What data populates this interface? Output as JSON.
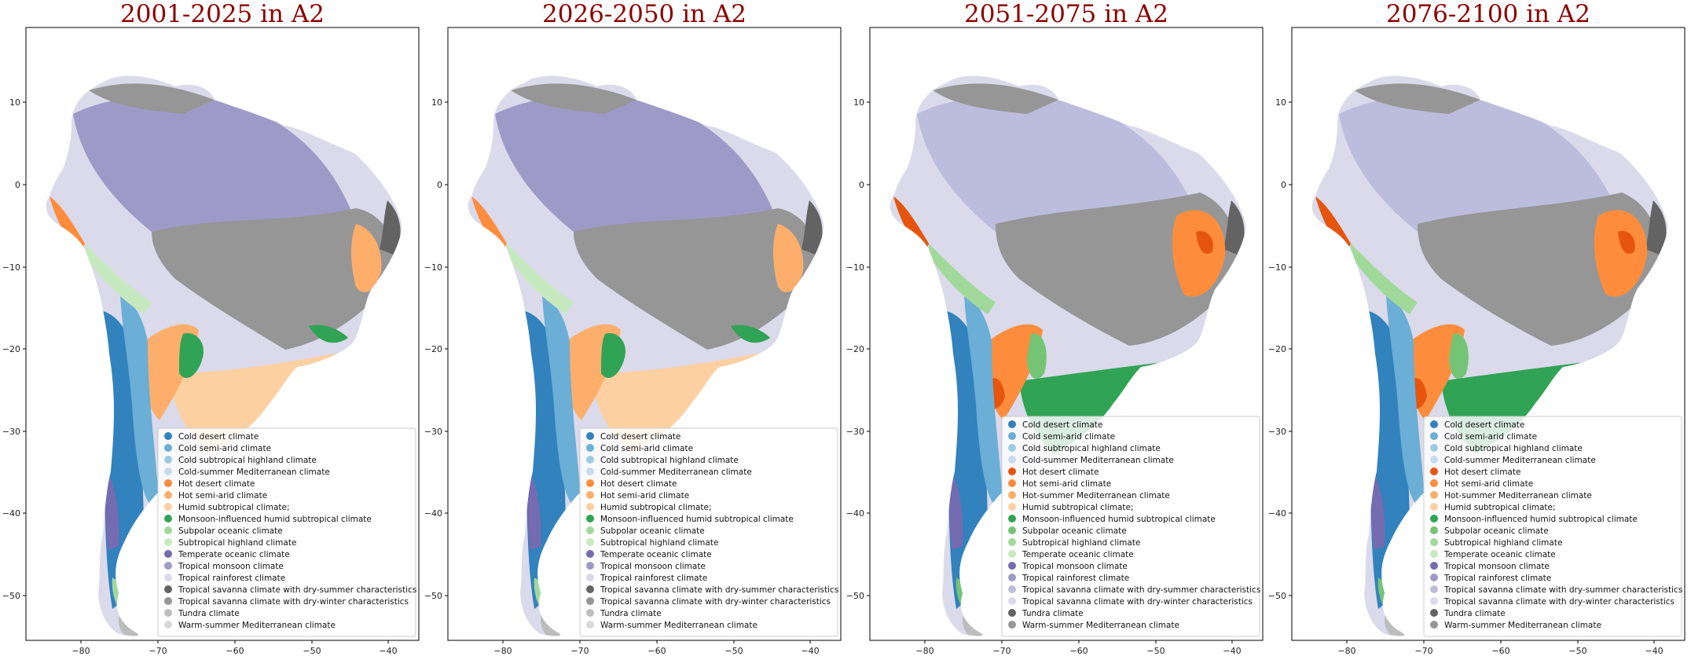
{
  "maps": [
    {
      "title": "2001-2025 in A2",
      "legend": [
        {
          "label": "Cold desert climate",
          "color": "#3182bd"
        },
        {
          "label": "Cold semi-arid climate",
          "color": "#6baed6"
        },
        {
          "label": "Cold subtropical highland climate",
          "color": "#9ecae1"
        },
        {
          "label": "Cold-summer Mediterranean climate",
          "color": "#c6dbef"
        },
        {
          "label": "Hot desert climate",
          "color": "#fd8d3c"
        },
        {
          "label": "Hot semi-arid climate",
          "color": "#fdae6b"
        },
        {
          "label": "Humid subtropical climate;",
          "color": "#fdd0a2"
        },
        {
          "label": "Monsoon-influenced humid subtropical climate",
          "color": "#31a354"
        },
        {
          "label": "Subpolar oceanic climate",
          "color": "#a1d99b"
        },
        {
          "label": "Subtropical highland climate",
          "color": "#c7e9c0"
        },
        {
          "label": "Temperate oceanic climate",
          "color": "#756bb1"
        },
        {
          "label": "Tropical monsoon climate",
          "color": "#9e9ac8"
        },
        {
          "label": "Tropical rainforest climate",
          "color": "#dadaeb"
        },
        {
          "label": "Tropical savanna climate with dry-summer characteristics",
          "color": "#636363"
        },
        {
          "label": "Tropical savanna climate with dry-winter characteristics",
          "color": "#969696"
        },
        {
          "label": "Tundra climate",
          "color": "#bdbdbd"
        },
        {
          "label": "Warm-summer Mediterranean climate",
          "color": "#d9d9d9"
        }
      ]
    },
    {
      "title": "2026-2050 in A2",
      "legend": [
        {
          "label": "Cold desert climate",
          "color": "#3182bd"
        },
        {
          "label": "Cold semi-arid climate",
          "color": "#6baed6"
        },
        {
          "label": "Cold subtropical highland climate",
          "color": "#9ecae1"
        },
        {
          "label": "Cold-summer Mediterranean climate",
          "color": "#c6dbef"
        },
        {
          "label": "Hot desert climate",
          "color": "#fd8d3c"
        },
        {
          "label": "Hot semi-arid climate",
          "color": "#fdae6b"
        },
        {
          "label": "Humid subtropical climate;",
          "color": "#fdd0a2"
        },
        {
          "label": "Monsoon-influenced humid subtropical climate",
          "color": "#31a354"
        },
        {
          "label": "Subpolar oceanic climate",
          "color": "#a1d99b"
        },
        {
          "label": "Subtropical highland climate",
          "color": "#c7e9c0"
        },
        {
          "label": "Temperate oceanic climate",
          "color": "#756bb1"
        },
        {
          "label": "Tropical monsoon climate",
          "color": "#9e9ac8"
        },
        {
          "label": "Tropical rainforest climate",
          "color": "#dadaeb"
        },
        {
          "label": "Tropical savanna climate with dry-summer characteristics",
          "color": "#636363"
        },
        {
          "label": "Tropical savanna climate with dry-winter characteristics",
          "color": "#969696"
        },
        {
          "label": "Tundra climate",
          "color": "#bdbdbd"
        },
        {
          "label": "Warm-summer Mediterranean climate",
          "color": "#d9d9d9"
        }
      ]
    },
    {
      "title": "2051-2075 in A2",
      "legend": [
        {
          "label": "Cold desert climate",
          "color": "#3182bd"
        },
        {
          "label": "Cold semi-arid climate",
          "color": "#6baed6"
        },
        {
          "label": "Cold subtropical highland climate",
          "color": "#9ecae1"
        },
        {
          "label": "Cold-summer Mediterranean climate",
          "color": "#c6dbef"
        },
        {
          "label": "Hot desert climate",
          "color": "#e6550d"
        },
        {
          "label": "Hot semi-arid climate",
          "color": "#fd8d3c"
        },
        {
          "label": "Hot-summer Mediterranean climate",
          "color": "#fdae6b"
        },
        {
          "label": "Humid subtropical climate;",
          "color": "#fdd0a2"
        },
        {
          "label": "Monsoon-influenced humid subtropical climate",
          "color": "#31a354"
        },
        {
          "label": "Subpolar oceanic climate",
          "color": "#74c476"
        },
        {
          "label": "Subtropical highland climate",
          "color": "#a1d99b"
        },
        {
          "label": "Temperate oceanic climate",
          "color": "#c7e9c0"
        },
        {
          "label": "Tropical monsoon climate",
          "color": "#756bb1"
        },
        {
          "label": "Tropical rainforest climate",
          "color": "#9e9ac8"
        },
        {
          "label": "Tropical savanna climate with dry-summer characteristics",
          "color": "#bcbddc"
        },
        {
          "label": "Tropical savanna climate with dry-winter characteristics",
          "color": "#dadaeb"
        },
        {
          "label": "Tundra climate",
          "color": "#636363"
        },
        {
          "label": "Warm-summer Mediterranean climate",
          "color": "#969696"
        }
      ]
    },
    {
      "title": "2076-2100 in A2",
      "legend": [
        {
          "label": "Cold desert climate",
          "color": "#3182bd"
        },
        {
          "label": "Cold semi-arid climate",
          "color": "#6baed6"
        },
        {
          "label": "Cold subtropical highland climate",
          "color": "#9ecae1"
        },
        {
          "label": "Cold-summer Mediterranean climate",
          "color": "#c6dbef"
        },
        {
          "label": "Hot desert climate",
          "color": "#e6550d"
        },
        {
          "label": "Hot semi-arid climate",
          "color": "#fd8d3c"
        },
        {
          "label": "Hot-summer Mediterranean climate",
          "color": "#fdae6b"
        },
        {
          "label": "Humid subtropical climate;",
          "color": "#fdd0a2"
        },
        {
          "label": "Monsoon-influenced humid subtropical climate",
          "color": "#31a354"
        },
        {
          "label": "Subpolar oceanic climate",
          "color": "#74c476"
        },
        {
          "label": "Subtropical highland climate",
          "color": "#a1d99b"
        },
        {
          "label": "Temperate oceanic climate",
          "color": "#c7e9c0"
        },
        {
          "label": "Tropical monsoon climate",
          "color": "#756bb1"
        },
        {
          "label": "Tropical rainforest climate",
          "color": "#9e9ac8"
        },
        {
          "label": "Tropical savanna climate with dry-summer characteristics",
          "color": "#bcbddc"
        },
        {
          "label": "Tropical savanna climate with dry-winter characteristics",
          "color": "#dadaeb"
        },
        {
          "label": "Tundra climate",
          "color": "#636363"
        },
        {
          "label": "Warm-summer Mediterranean climate",
          "color": "#969696"
        }
      ]
    }
  ],
  "axes": {
    "xticks": [
      "−80",
      "−70",
      "−60",
      "−50",
      "−40"
    ],
    "yticks": [
      "10",
      "0",
      "−10",
      "−20",
      "−30",
      "−40",
      "−50"
    ]
  }
}
